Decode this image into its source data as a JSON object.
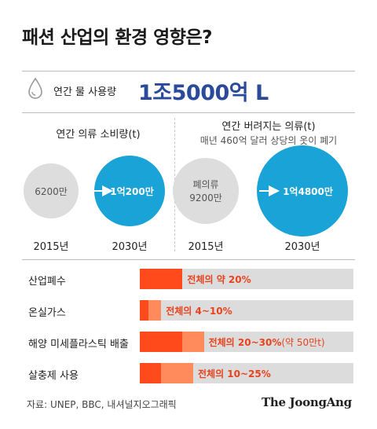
{
  "title": "패션 산업의 환경 영향은?",
  "water": {
    "label": "연간 물 사용량",
    "value": "1조5000억 L"
  },
  "consumption": {
    "title": "연간 의류 소비량(t)",
    "items": [
      {
        "year": "2015년",
        "label": "6200만",
        "value": 62000000
      },
      {
        "year": "2030년",
        "label": "1억200만",
        "value": 102000000
      }
    ]
  },
  "discarded": {
    "title": "연간 버려지는 의류(t)",
    "note": "매년 460억 달러 상당의 옷이 폐기",
    "items": [
      {
        "year": "2015년",
        "label_line1": "폐의류",
        "label_line2": "9200만",
        "value": 92000000
      },
      {
        "year": "2030년",
        "label": "1억4800만",
        "value": 148000000
      }
    ]
  },
  "chart_data": {
    "type": "bar",
    "categories": [
      "산업폐수",
      "온실가스",
      "해양 미세플라스틱 배출",
      "살충제 사용"
    ],
    "series": [
      {
        "low": [
          20,
          4,
          20,
          10
        ],
        "high": [
          20,
          10,
          30,
          25
        ]
      }
    ],
    "value_labels": [
      "전체의 약 20%",
      "전체의 4~10%",
      "전체의 20~30%",
      "전체의 10~25%"
    ],
    "value_extra": [
      "",
      "",
      "(약 50만t)",
      ""
    ],
    "xlim": [
      0,
      100
    ],
    "title": "",
    "xlabel": "",
    "ylabel": ""
  },
  "colors": {
    "consumption_2015": "#dddddd",
    "consumption_2030": "#1aa3d6",
    "bar_main": "#ff4a1c",
    "bar_range": "#ff8a5c",
    "track": "#dcdcdc",
    "water_value": "#2b4a9c"
  },
  "source": "자료: UNEP, BBC, 내셔널지오그래픽",
  "logo": "The JoongAng"
}
